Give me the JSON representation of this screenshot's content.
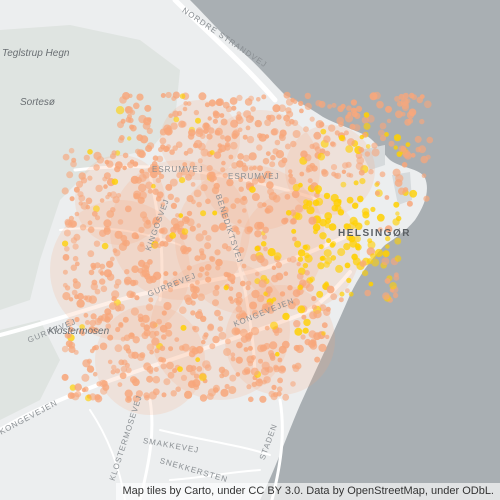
{
  "map": {
    "basemap": "light",
    "colors": {
      "land": "#eceeef",
      "sea": "#a9afb3",
      "park": "#dfe4e1",
      "road": "#ffffff",
      "point_low": "#f7a77c",
      "point_high": "#ffd000"
    },
    "place_labels": [
      "Teglstrup Hegn",
      "Sortesø",
      "Klostermosen"
    ],
    "road_labels": [
      "NORDRE STRANDVEJ",
      "ESRUMVEJ",
      "ESRUMVEJ",
      "KINGOSVEJ",
      "BENEDIKTSVEJ",
      "GURREVEJ",
      "GURREVEJ",
      "KONGEVEJEN",
      "KONGEVEJEN",
      "KLOSTERMOSEVEJ",
      "SMAKKEVEJ",
      "SNEKKERSTEN",
      "STADEN"
    ],
    "city_label": "HELSINGØR",
    "attribution": "Map tiles by Carto, under CC BY 3.0. Data by OpenStreetMap, under ODbL."
  }
}
